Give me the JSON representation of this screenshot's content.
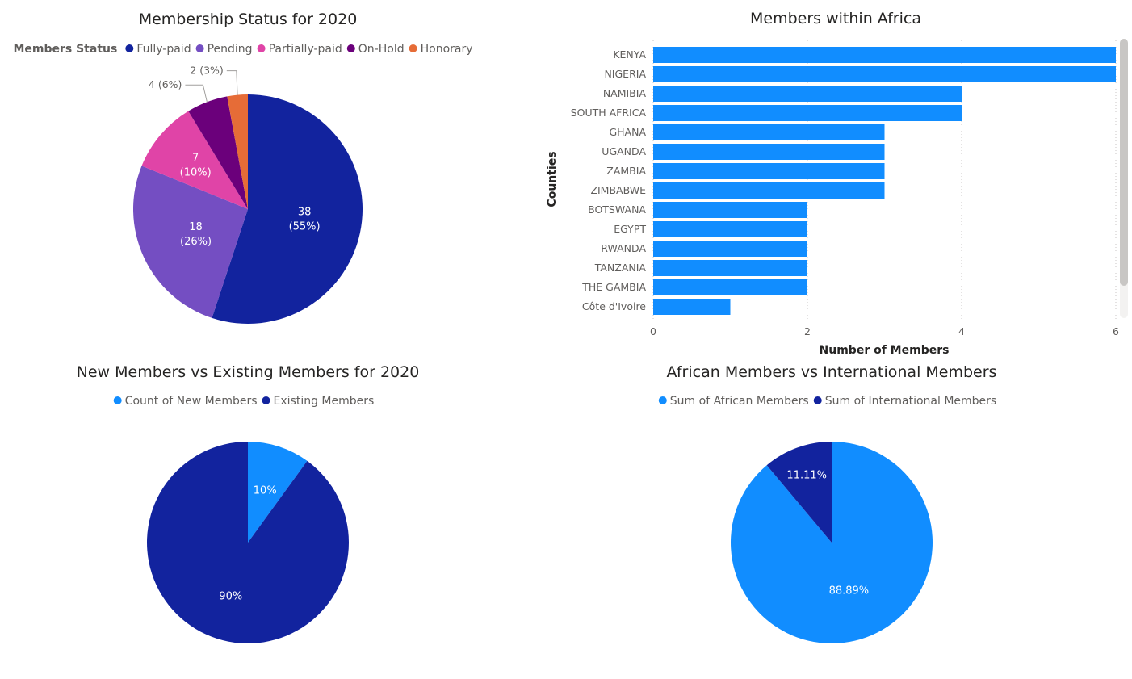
{
  "chart_data": [
    {
      "type": "pie",
      "title": "Membership Status for 2020",
      "legend_title": "Members Status",
      "legend_position": "top",
      "categories": [
        "Fully-paid",
        "Pending",
        "Partially-paid",
        "On-Hold",
        "Honorary"
      ],
      "values": [
        38,
        18,
        7,
        4,
        2
      ],
      "data_labels": [
        "38",
        "18",
        "7",
        "4",
        "2"
      ],
      "percent_labels": [
        "(55%)",
        "(26%)",
        "(10%)",
        "(6%)",
        "(3%)"
      ],
      "colors": [
        "#12239e",
        "#744ec2",
        "#e044a7",
        "#6b007b",
        "#e66c37"
      ]
    },
    {
      "type": "bar",
      "orientation": "horizontal",
      "title": "Members within Africa",
      "xlabel": "Number of Members",
      "ylabel": "Counties",
      "categories": [
        "KENYA",
        "NIGERIA",
        "NAMIBIA",
        "SOUTH AFRICA",
        "GHANA",
        "UGANDA",
        "ZAMBIA",
        "ZIMBABWE",
        "BOTSWANA",
        "EGYPT",
        "RWANDA",
        "TANZANIA",
        "THE GAMBIA",
        "Côte d'Ivoire"
      ],
      "values": [
        6,
        6,
        4,
        4,
        3,
        3,
        3,
        3,
        2,
        2,
        2,
        2,
        2,
        1
      ],
      "xlim": [
        0,
        6
      ],
      "xticks": [
        "0",
        "2",
        "4",
        "6"
      ],
      "grid": true,
      "color": "#118dff"
    },
    {
      "type": "pie",
      "title": "New Members vs Existing Members for 2020",
      "legend_position": "top",
      "categories": [
        "Count of New Members",
        "Existing Members"
      ],
      "values": [
        10,
        90
      ],
      "data_labels": [
        "10%",
        "90%"
      ],
      "colors": [
        "#118dff",
        "#12239e"
      ]
    },
    {
      "type": "pie",
      "title": "African Members vs International Members",
      "legend_position": "top",
      "categories": [
        "Sum of African Members",
        "Sum of International Members"
      ],
      "values": [
        88.89,
        11.11
      ],
      "data_labels": [
        "88.89%",
        "11.11%"
      ],
      "colors": [
        "#118dff",
        "#12239e"
      ]
    }
  ]
}
